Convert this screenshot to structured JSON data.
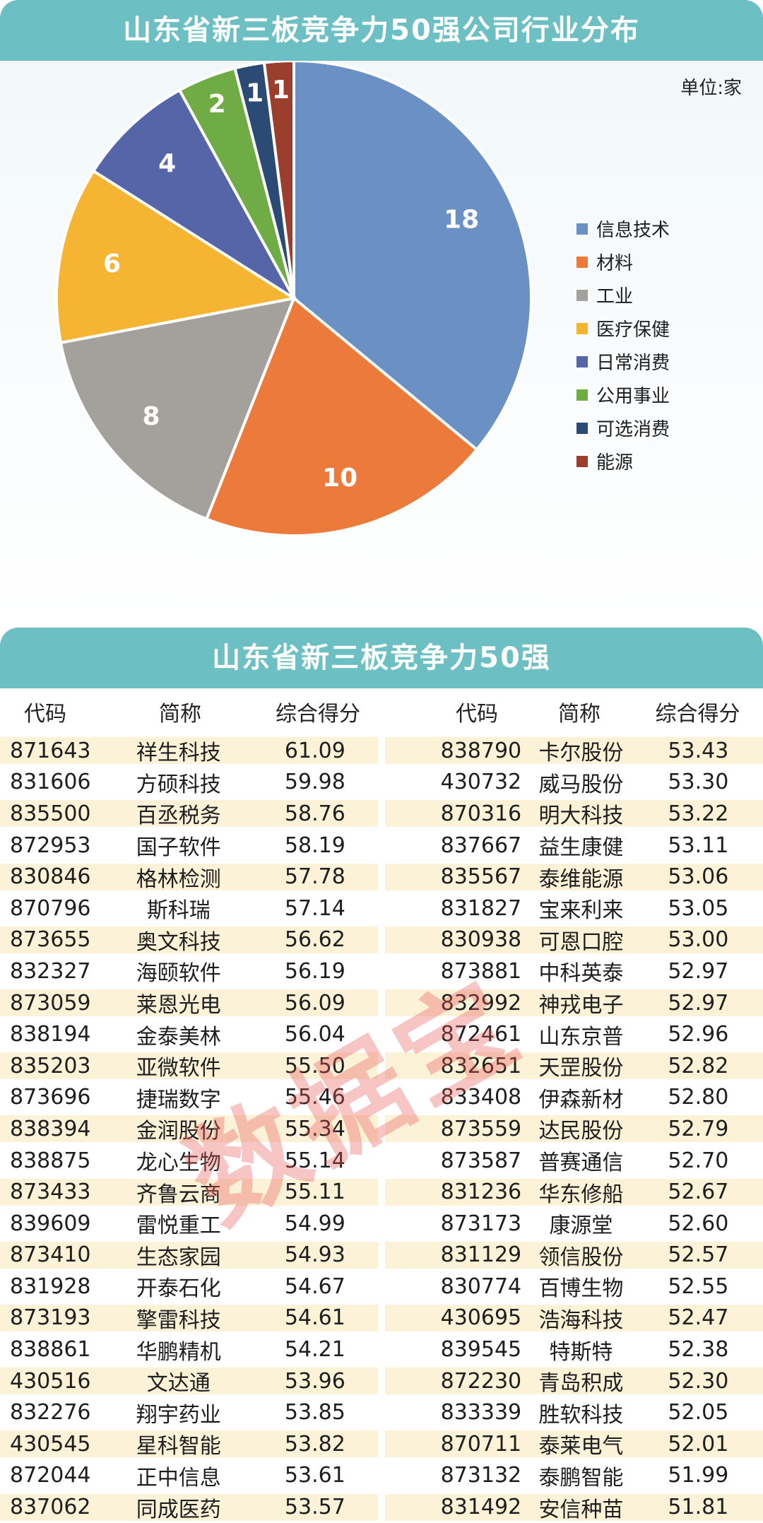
{
  "title": "山东省新三板竞争力50强公司行业分布",
  "unit_label": "单位:家",
  "chart_data": {
    "type": "pie",
    "title": "山东省新三板竞争力50强公司行业分布",
    "categories": [
      "信息技术",
      "材料",
      "工业",
      "医疗保健",
      "日常消费",
      "公用事业",
      "可选消费",
      "能源"
    ],
    "values": [
      18,
      10,
      8,
      6,
      4,
      2,
      1,
      1
    ],
    "colors": [
      "#6a90c4",
      "#ec7a3a",
      "#a4a19c",
      "#f6b433",
      "#5565a8",
      "#6fac45",
      "#2b4a74",
      "#9b3e2e"
    ],
    "legend_position": "right",
    "data_labels": [
      "18",
      "10",
      "8",
      "6",
      "4",
      "2",
      "1",
      "1"
    ]
  },
  "table": {
    "title": "山东省新三板竞争力50强",
    "headers": [
      "代码",
      "简称",
      "综合得分",
      "代码",
      "简称",
      "综合得分"
    ],
    "left_rows": [
      [
        "871643",
        "祥生科技",
        "61.09"
      ],
      [
        "831606",
        "方硕科技",
        "59.98"
      ],
      [
        "835500",
        "百丞税务",
        "58.76"
      ],
      [
        "872953",
        "国子软件",
        "58.19"
      ],
      [
        "830846",
        "格林检测",
        "57.78"
      ],
      [
        "870796",
        "斯科瑞",
        "57.14"
      ],
      [
        "873655",
        "奥文科技",
        "56.62"
      ],
      [
        "832327",
        "海颐软件",
        "56.19"
      ],
      [
        "873059",
        "莱恩光电",
        "56.09"
      ],
      [
        "838194",
        "金泰美林",
        "56.04"
      ],
      [
        "835203",
        "亚微软件",
        "55.50"
      ],
      [
        "873696",
        "捷瑞数字",
        "55.46"
      ],
      [
        "838394",
        "金润股份",
        "55.34"
      ],
      [
        "838875",
        "龙心生物",
        "55.14"
      ],
      [
        "873433",
        "齐鲁云商",
        "55.11"
      ],
      [
        "839609",
        "雷悦重工",
        "54.99"
      ],
      [
        "873410",
        "生态家园",
        "54.93"
      ],
      [
        "831928",
        "开泰石化",
        "54.67"
      ],
      [
        "873193",
        "擎雷科技",
        "54.61"
      ],
      [
        "838861",
        "华鹏精机",
        "54.21"
      ],
      [
        "430516",
        "文达通",
        "53.96"
      ],
      [
        "832276",
        "翔宇药业",
        "53.85"
      ],
      [
        "430545",
        "星科智能",
        "53.82"
      ],
      [
        "872044",
        "正中信息",
        "53.61"
      ],
      [
        "837062",
        "同成医药",
        "53.57"
      ]
    ],
    "right_rows": [
      [
        "838790",
        "卡尔股份",
        "53.43"
      ],
      [
        "430732",
        "威马股份",
        "53.30"
      ],
      [
        "870316",
        "明大科技",
        "53.22"
      ],
      [
        "837667",
        "益生康健",
        "53.11"
      ],
      [
        "835567",
        "泰维能源",
        "53.06"
      ],
      [
        "831827",
        "宝来利来",
        "53.05"
      ],
      [
        "830938",
        "可恩口腔",
        "53.00"
      ],
      [
        "873881",
        "中科英泰",
        "52.97"
      ],
      [
        "832992",
        "神戎电子",
        "52.97"
      ],
      [
        "872461",
        "山东京普",
        "52.96"
      ],
      [
        "832651",
        "天罡股份",
        "52.82"
      ],
      [
        "833408",
        "伊森新材",
        "52.80"
      ],
      [
        "873559",
        "达民股份",
        "52.79"
      ],
      [
        "873587",
        "普赛通信",
        "52.70"
      ],
      [
        "831236",
        "华东修船",
        "52.67"
      ],
      [
        "873173",
        "康源堂",
        "52.60"
      ],
      [
        "831129",
        "领信股份",
        "52.57"
      ],
      [
        "830774",
        "百博生物",
        "52.55"
      ],
      [
        "430695",
        "浩海科技",
        "52.47"
      ],
      [
        "839545",
        "特斯特",
        "52.38"
      ],
      [
        "872230",
        "青岛积成",
        "52.30"
      ],
      [
        "833339",
        "胜软科技",
        "52.05"
      ],
      [
        "870711",
        "泰莱电气",
        "52.01"
      ],
      [
        "873132",
        "泰鹏智能",
        "51.99"
      ],
      [
        "831492",
        "安信种苗",
        "51.81"
      ]
    ]
  },
  "watermark": "数据宝"
}
